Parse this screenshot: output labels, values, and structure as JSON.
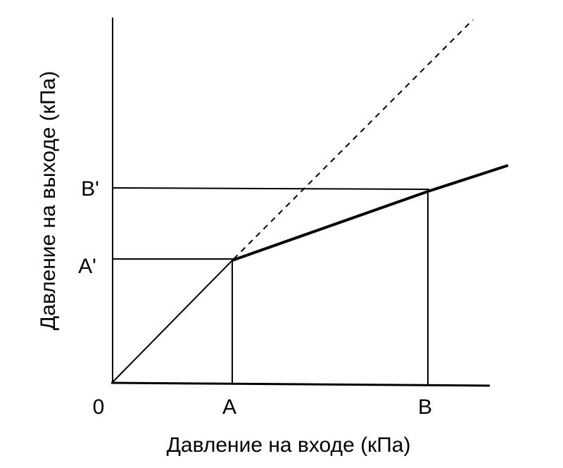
{
  "axes": {
    "x_label": "Давление на входе (кПа)",
    "y_label": "Давление на выходе (кПа)"
  },
  "labels": {
    "origin": "0",
    "x_a": "A",
    "x_b": "B",
    "y_a": "A'",
    "y_b": "B'"
  }
}
